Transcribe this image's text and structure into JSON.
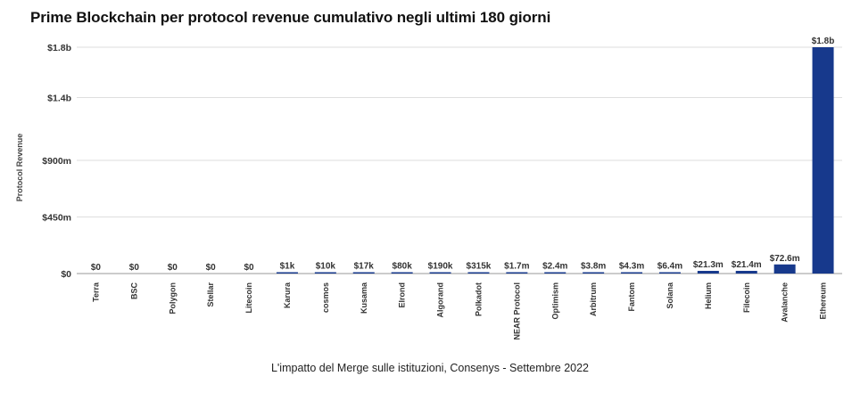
{
  "title": "Prime Blockchain per protocol revenue cumulativo negli ultimi 180 giorni",
  "caption": "L'impatto del Merge sulle istituzioni, Consenys - Settembre 2022",
  "colors": {
    "bar": "#17398c",
    "grid": "#dedede",
    "axis": "#999999"
  },
  "chart_data": {
    "type": "bar",
    "title": "Prime Blockchain per protocol revenue cumulativo negli ultimi 180 giorni",
    "xlabel": "",
    "ylabel": "Protocol Revenue",
    "ylim": [
      0,
      1800000000
    ],
    "yticks": [
      0,
      450000000,
      900000000,
      1400000000,
      1800000000
    ],
    "ytick_labels": [
      "$0",
      "$450m",
      "$900m",
      "$1.4b",
      "$1.8b"
    ],
    "grid": true,
    "categories": [
      "Terra",
      "BSC",
      "Polygon",
      "Stellar",
      "Litecoin",
      "Karura",
      "cosmos",
      "Kusama",
      "Elrond",
      "Algorand",
      "Polkadot",
      "NEAR Protocol",
      "Optimism",
      "Arbitrum",
      "Fantom",
      "Solana",
      "Helium",
      "Filecoin",
      "Avalanche",
      "Ethereum"
    ],
    "values": [
      0,
      0,
      0,
      0,
      0,
      1000,
      10000,
      17000,
      80000,
      190000,
      315000,
      1700000,
      2400000,
      3800000,
      4300000,
      6400000,
      21300000,
      21400000,
      72600000,
      1800000000
    ],
    "data_labels": [
      "$0",
      "$0",
      "$0",
      "$0",
      "$0",
      "$1k",
      "$10k",
      "$17k",
      "$80k",
      "$190k",
      "$315k",
      "$1.7m",
      "$2.4m",
      "$3.8m",
      "$4.3m",
      "$6.4m",
      "$21.3m",
      "$21.4m",
      "$72.6m",
      "$1.8b"
    ]
  }
}
